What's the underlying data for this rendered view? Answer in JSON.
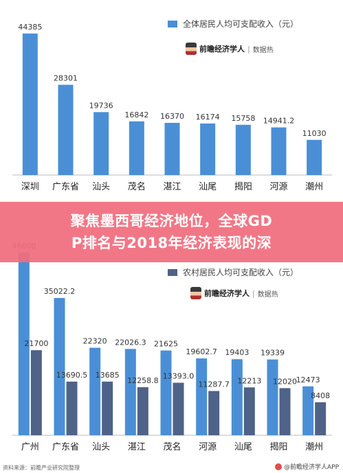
{
  "chart_data": [
    {
      "type": "bar",
      "title": "",
      "categories": [
        "深圳",
        "广东省",
        "汕头",
        "茂名",
        "湛江",
        "汕尾",
        "揭阳",
        "河源",
        "潮州"
      ],
      "series": [
        {
          "name": "全体居民人均可支配收入（元）",
          "values": [
            44385,
            28301,
            19736,
            16842,
            16370,
            16174,
            15758,
            14941.2,
            11030
          ],
          "labels": [
            "44385",
            "28301",
            "19736",
            "16842",
            "16370",
            "16174",
            "15758",
            "14941.2",
            "11030"
          ]
        }
      ],
      "ylim": [
        0,
        48000
      ],
      "grid": false,
      "legend": "top-right",
      "colors": [
        "#4a8fd6"
      ]
    },
    {
      "type": "bar",
      "title": "",
      "categories": [
        "广州",
        "广东省",
        "汕头",
        "湛江",
        "茂名",
        "河源",
        "汕尾",
        "揭阳",
        "潮州"
      ],
      "series": [
        {
          "name": "",
          "values": [
            46600,
            35022.2,
            22320,
            22026.3,
            21625,
            19602.7,
            19403,
            19339,
            12473
          ],
          "labels": [
            "46600",
            "35022.2",
            "22320",
            "22026.3",
            "21625",
            "19602.7",
            "19403",
            "19339",
            "12473"
          ]
        },
        {
          "name": "农村居民人均可支配收入（元）",
          "values": [
            21700,
            13690.5,
            13685,
            12258.8,
            13393,
            11287.7,
            12213,
            12020,
            8408
          ],
          "labels": [
            "21700",
            "13690.5",
            "13685",
            "12258.8",
            "13393.0",
            "11287.7",
            "12213",
            "12020",
            "8408"
          ]
        }
      ],
      "ylim": [
        0,
        48000
      ],
      "grid": false,
      "legend": "top-right",
      "colors": [
        "#4a8fd6",
        "#4f6288"
      ]
    }
  ],
  "brand": {
    "name": "前瞻经济学人",
    "tag": "数据热"
  },
  "banner": {
    "line1": "聚焦墨西哥经济地位，全球GD",
    "line2": "P排名与2018年经济表现的深"
  },
  "source": "资料来源：前瞻产业研究院整理",
  "footer_brand": "@前瞻经济学人APP",
  "colors": {
    "bar_primary": "#4a8fd6",
    "bar_secondary": "#4f6288",
    "banner": "#f26d7d"
  }
}
